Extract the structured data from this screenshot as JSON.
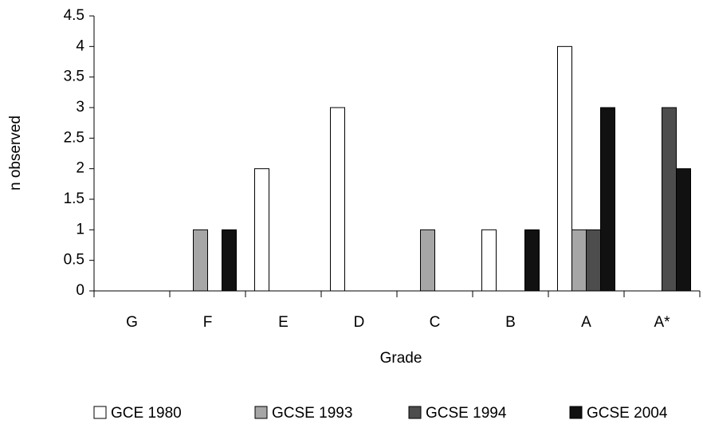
{
  "chart_data": {
    "type": "bar",
    "x_label": "Grade",
    "y_label": "n observed",
    "categories": [
      "G",
      "F",
      "E",
      "D",
      "C",
      "B",
      "A",
      "A*"
    ],
    "series": [
      {
        "name": "GCE 1980",
        "color": "#ffffff",
        "values": [
          0,
          0,
          2,
          3,
          0,
          1,
          4,
          0
        ]
      },
      {
        "name": "GCSE 1993",
        "color": "#a6a6a6",
        "values": [
          0,
          1,
          0,
          0,
          1,
          0,
          1,
          0
        ]
      },
      {
        "name": "GCSE 1994",
        "color": "#4d4d4d",
        "values": [
          0,
          0,
          0,
          0,
          0,
          0,
          1,
          3
        ]
      },
      {
        "name": "GCSE 2004",
        "color": "#111111",
        "values": [
          0,
          1,
          0,
          0,
          0,
          1,
          3,
          2
        ]
      }
    ],
    "ylim": [
      0,
      4.5
    ],
    "yticks": [
      0,
      0.5,
      1,
      1.5,
      2,
      2.5,
      3,
      3.5,
      4,
      4.5
    ],
    "grid": false
  }
}
